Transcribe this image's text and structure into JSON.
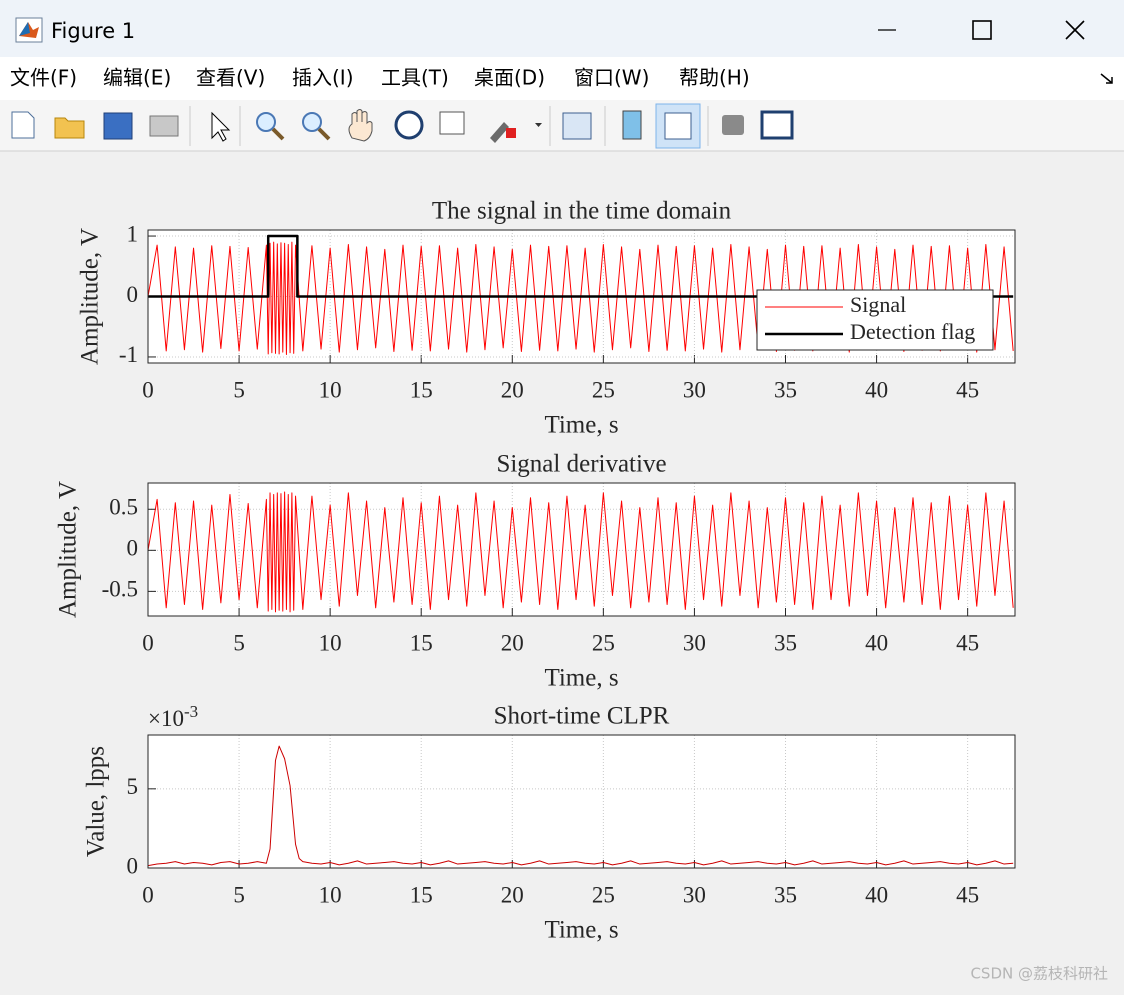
{
  "window": {
    "title": "Figure 1",
    "menu": [
      "文件(F)",
      "编辑(E)",
      "查看(V)",
      "插入(I)",
      "工具(T)",
      "桌面(D)",
      "窗口(W)",
      "帮助(H)"
    ],
    "watermark": "CSDN @荔枝科研社"
  },
  "chart_data": [
    {
      "type": "line",
      "title": "The signal in the time domain",
      "xlabel": "Time, s",
      "ylabel": "Amplitude, V",
      "xlim": [
        0,
        47.6
      ],
      "ylim": [
        -1.1,
        1.1
      ],
      "xticks": [
        0,
        5,
        10,
        15,
        20,
        25,
        30,
        35,
        40,
        45
      ],
      "yticks": [
        -1,
        0,
        1
      ],
      "grid": true,
      "legend": "southeast",
      "series": [
        {
          "name": "Signal",
          "color": "#ff0000",
          "x": [
            0,
            0.5,
            1,
            1.5,
            2,
            2.5,
            3,
            3.5,
            4,
            4.5,
            5,
            5.5,
            6,
            6.5,
            6.6,
            6.7,
            6.8,
            6.9,
            7,
            7.1,
            7.2,
            7.3,
            7.4,
            7.5,
            7.6,
            7.7,
            7.8,
            7.9,
            8,
            8.1,
            8.5,
            9,
            9.5,
            10,
            10.5,
            11,
            11.5,
            12,
            12.5,
            13,
            13.5,
            14,
            14.5,
            15,
            15.5,
            16,
            16.5,
            17,
            17.5,
            18,
            18.5,
            19,
            19.5,
            20,
            20.5,
            21,
            21.5,
            22,
            22.5,
            23,
            23.5,
            24,
            24.5,
            25,
            25.5,
            26,
            26.5,
            27,
            27.5,
            28,
            28.5,
            29,
            29.5,
            30,
            30.5,
            31,
            31.5,
            32,
            32.5,
            33,
            33.5,
            34,
            34.5,
            35,
            35.5,
            36,
            36.5,
            37,
            37.5,
            38,
            38.5,
            39,
            39.5,
            40,
            40.5,
            41,
            41.5,
            42,
            42.5,
            43,
            43.5,
            44,
            44.5,
            45,
            45.5,
            46,
            46.5,
            47,
            47.5
          ],
          "values": [
            0,
            0.85,
            -0.9,
            0.82,
            -0.88,
            0.8,
            -0.92,
            0.84,
            -0.86,
            0.83,
            -0.9,
            0.81,
            -0.87,
            0.85,
            -0.95,
            0.88,
            -0.93,
            0.9,
            -0.94,
            0.87,
            -0.95,
            0.89,
            -0.92,
            0.88,
            -0.96,
            0.86,
            -0.93,
            0.9,
            -0.94,
            0.85,
            -0.9,
            0.84,
            -0.87,
            0.8,
            -0.92,
            0.86,
            -0.88,
            0.82,
            -0.85,
            0.78,
            -0.91,
            0.85,
            -0.89,
            0.83,
            -0.9,
            0.84,
            -0.87,
            0.8,
            -0.92,
            0.86,
            -0.88,
            0.82,
            -0.85,
            0.78,
            -0.91,
            0.85,
            -0.89,
            0.83,
            -0.9,
            0.84,
            -0.87,
            0.8,
            -0.92,
            0.86,
            -0.88,
            0.82,
            -0.85,
            0.78,
            -0.91,
            0.85,
            -0.89,
            0.83,
            -0.9,
            0.84,
            -0.87,
            0.8,
            -0.92,
            0.86,
            -0.88,
            0.82,
            -0.85,
            0.78,
            -0.91,
            0.85,
            -0.89,
            0.83,
            -0.9,
            0.84,
            -0.87,
            0.8,
            -0.92,
            0.86,
            -0.88,
            0.82,
            -0.85,
            0.78,
            -0.91,
            0.85,
            -0.89,
            0.83,
            -0.9,
            0.84,
            -0.87,
            0.8,
            -0.92,
            0.86,
            -0.88,
            0.82,
            -0.9
          ]
        },
        {
          "name": "Detection flag",
          "color": "#000000",
          "x": [
            0,
            6.6,
            6.6,
            8.2,
            8.2,
            47.5
          ],
          "values": [
            0,
            0,
            1,
            1,
            0,
            0
          ]
        }
      ]
    },
    {
      "type": "line",
      "title": "Signal derivative",
      "xlabel": "Time, s",
      "ylabel": "Amplitude, V",
      "xlim": [
        0,
        47.6
      ],
      "ylim": [
        -0.8,
        0.82
      ],
      "xticks": [
        0,
        5,
        10,
        15,
        20,
        25,
        30,
        35,
        40,
        45
      ],
      "yticks": [
        -0.5,
        0,
        0.5
      ],
      "grid": true,
      "color": "#ff0000",
      "x": [
        0,
        0.5,
        1,
        1.5,
        2,
        2.5,
        3,
        3.5,
        4,
        4.5,
        5,
        5.5,
        6,
        6.5,
        6.6,
        6.7,
        6.8,
        6.9,
        7,
        7.1,
        7.2,
        7.3,
        7.4,
        7.5,
        7.6,
        7.7,
        7.8,
        7.9,
        8,
        8.1,
        8.5,
        9,
        9.5,
        10,
        10.5,
        11,
        11.5,
        12,
        12.5,
        13,
        13.5,
        14,
        14.5,
        15,
        15.5,
        16,
        16.5,
        17,
        17.5,
        18,
        18.5,
        19,
        19.5,
        20,
        20.5,
        21,
        21.5,
        22,
        22.5,
        23,
        23.5,
        24,
        24.5,
        25,
        25.5,
        26,
        26.5,
        27,
        27.5,
        28,
        28.5,
        29,
        29.5,
        30,
        30.5,
        31,
        31.5,
        32,
        32.5,
        33,
        33.5,
        34,
        34.5,
        35,
        35.5,
        36,
        36.5,
        37,
        37.5,
        38,
        38.5,
        39,
        39.5,
        40,
        40.5,
        41,
        41.5,
        42,
        42.5,
        43,
        43.5,
        44,
        44.5,
        45,
        45.5,
        46,
        46.5,
        47,
        47.5
      ],
      "values": [
        0,
        0.62,
        -0.7,
        0.58,
        -0.66,
        0.6,
        -0.72,
        0.55,
        -0.64,
        0.68,
        -0.6,
        0.57,
        -0.7,
        0.62,
        -0.74,
        0.7,
        -0.72,
        0.68,
        -0.75,
        0.7,
        -0.73,
        0.69,
        -0.74,
        0.71,
        -0.72,
        0.68,
        -0.75,
        0.7,
        -0.73,
        0.66,
        -0.72,
        0.66,
        -0.6,
        0.55,
        -0.68,
        0.7,
        -0.55,
        0.6,
        -0.7,
        0.52,
        -0.63,
        0.64,
        -0.66,
        0.58,
        -0.72,
        0.66,
        -0.6,
        0.55,
        -0.68,
        0.7,
        -0.55,
        0.6,
        -0.7,
        0.52,
        -0.63,
        0.64,
        -0.66,
        0.58,
        -0.72,
        0.66,
        -0.6,
        0.55,
        -0.68,
        0.7,
        -0.55,
        0.6,
        -0.7,
        0.52,
        -0.63,
        0.64,
        -0.66,
        0.58,
        -0.72,
        0.66,
        -0.6,
        0.55,
        -0.68,
        0.7,
        -0.55,
        0.6,
        -0.7,
        0.52,
        -0.63,
        0.64,
        -0.66,
        0.58,
        -0.72,
        0.66,
        -0.6,
        0.55,
        -0.68,
        0.7,
        -0.55,
        0.6,
        -0.7,
        0.52,
        -0.63,
        0.64,
        -0.66,
        0.58,
        -0.72,
        0.66,
        -0.6,
        0.55,
        -0.68,
        0.7,
        -0.55,
        0.6,
        -0.7
      ]
    },
    {
      "type": "line",
      "title": "Short-time CLPR",
      "xlabel": "Time, s",
      "ylabel": "Value, lpps",
      "y_multiplier": "×10",
      "y_exponent": "-3",
      "xlim": [
        0,
        47.6
      ],
      "ylim": [
        0,
        8.4
      ],
      "xticks": [
        0,
        5,
        10,
        15,
        20,
        25,
        30,
        35,
        40,
        45
      ],
      "yticks": [
        0,
        5
      ],
      "grid": true,
      "color": "#cc0000",
      "x": [
        0,
        0.5,
        1,
        1.5,
        2,
        2.5,
        3,
        3.5,
        4,
        4.5,
        5,
        5.5,
        6,
        6.5,
        6.7,
        7,
        7.2,
        7.5,
        7.8,
        8.1,
        8.3,
        8.5,
        9,
        9.5,
        10,
        10.5,
        11,
        11.5,
        12,
        12.5,
        13,
        13.5,
        14,
        14.5,
        15,
        15.5,
        16,
        16.5,
        17,
        17.5,
        18,
        18.5,
        19,
        19.5,
        20,
        20.5,
        21,
        21.5,
        22,
        22.5,
        23,
        23.5,
        24,
        24.5,
        25,
        25.5,
        26,
        26.5,
        27,
        27.5,
        28,
        28.5,
        29,
        29.5,
        30,
        30.5,
        31,
        31.5,
        32,
        32.5,
        33,
        33.5,
        34,
        34.5,
        35,
        35.5,
        36,
        36.5,
        37,
        37.5,
        38,
        38.5,
        39,
        39.5,
        40,
        40.5,
        41,
        41.5,
        42,
        42.5,
        43,
        43.5,
        44,
        44.5,
        45,
        45.5,
        46,
        46.5,
        47,
        47.5
      ],
      "values": [
        0.15,
        0.25,
        0.3,
        0.4,
        0.25,
        0.35,
        0.3,
        0.2,
        0.35,
        0.4,
        0.25,
        0.3,
        0.4,
        0.3,
        1.2,
        6.8,
        7.7,
        6.9,
        5.2,
        1.5,
        0.6,
        0.4,
        0.3,
        0.25,
        0.35,
        0.2,
        0.3,
        0.45,
        0.25,
        0.3,
        0.35,
        0.4,
        0.3,
        0.25,
        0.35,
        0.2,
        0.3,
        0.45,
        0.25,
        0.3,
        0.35,
        0.4,
        0.3,
        0.25,
        0.35,
        0.2,
        0.3,
        0.45,
        0.25,
        0.3,
        0.35,
        0.4,
        0.3,
        0.25,
        0.35,
        0.2,
        0.3,
        0.45,
        0.25,
        0.3,
        0.35,
        0.4,
        0.3,
        0.25,
        0.35,
        0.2,
        0.3,
        0.45,
        0.25,
        0.3,
        0.35,
        0.4,
        0.3,
        0.25,
        0.35,
        0.2,
        0.3,
        0.45,
        0.25,
        0.3,
        0.35,
        0.4,
        0.3,
        0.25,
        0.35,
        0.2,
        0.3,
        0.45,
        0.25,
        0.3,
        0.35,
        0.4,
        0.3,
        0.25,
        0.35,
        0.2,
        0.3,
        0.45,
        0.25,
        0.3
      ]
    }
  ]
}
